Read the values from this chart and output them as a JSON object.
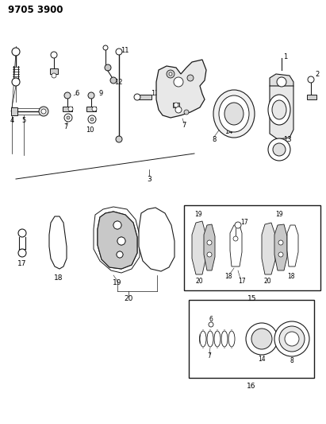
{
  "title": "9705 3900",
  "bg_color": "#ffffff",
  "line_color": "#1a1a1a",
  "fig_width": 4.11,
  "fig_height": 5.33,
  "dpi": 100
}
